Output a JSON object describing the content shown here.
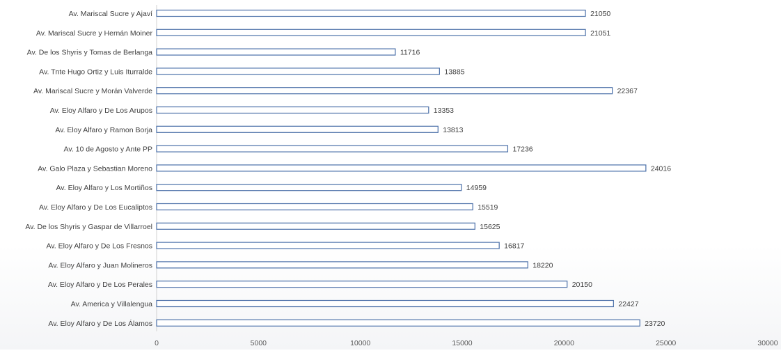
{
  "chart_data": {
    "type": "bar",
    "orientation": "horizontal",
    "title": "",
    "xlabel": "",
    "ylabel": "",
    "xlim": [
      0,
      30000
    ],
    "xticks": [
      "0",
      "5000",
      "10000",
      "15000",
      "20000",
      "25000",
      "30000"
    ],
    "grid": false,
    "legend": "none",
    "bar_fill": "#ffffff",
    "bar_stroke": "#4a6fa8",
    "categories": [
      "Av. Mariscal Sucre y Ajaví",
      "Av. Mariscal Sucre y Hernán Moiner",
      "Av. De los Shyris y Tomas de Berlanga",
      "Av. Tnte Hugo Ortiz y Luis Iturralde",
      "Av. Mariscal Sucre y Morán Valverde",
      "Av. Eloy Alfaro y De Los Arupos",
      "Av. Eloy Alfaro y Ramon Borja",
      "Av. 10 de Agosto y Ante PP",
      "Av. Galo Plaza y Sebastian Moreno",
      "Av. Eloy Alfaro y Los Mortiños",
      "Av. Eloy Alfaro y De Los Eucaliptos",
      "Av. De los Shyris y Gaspar de Villarroel",
      "Av. Eloy Alfaro y De Los Fresnos",
      "Av. Eloy Alfaro y Juan Molineros",
      "Av. Eloy Alfaro y De Los Perales",
      "Av. America y Villalengua",
      "Av. Eloy Alfaro y De Los Álamos"
    ],
    "values": [
      21050,
      21051,
      11716,
      13885,
      22367,
      13353,
      13813,
      17236,
      24016,
      14959,
      15519,
      15625,
      16817,
      18220,
      20150,
      22427,
      23720
    ]
  }
}
